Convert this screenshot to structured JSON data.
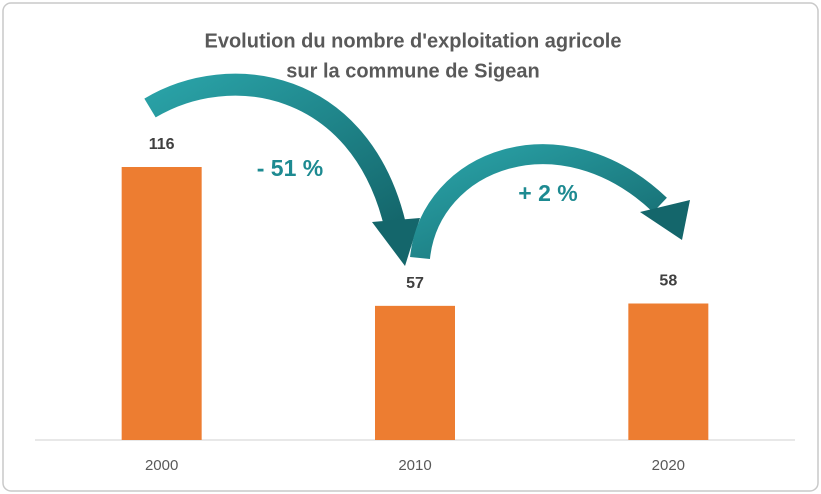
{
  "chart_data": {
    "type": "bar",
    "title": [
      "Evolution du nombre d'exploitation agricole",
      "sur la commune de Sigean"
    ],
    "categories": [
      "2000",
      "2010",
      "2020"
    ],
    "values": [
      116,
      57,
      58
    ],
    "color": "#ed7d31",
    "annotations": [
      "- 51 %",
      "+ 2 %"
    ]
  }
}
